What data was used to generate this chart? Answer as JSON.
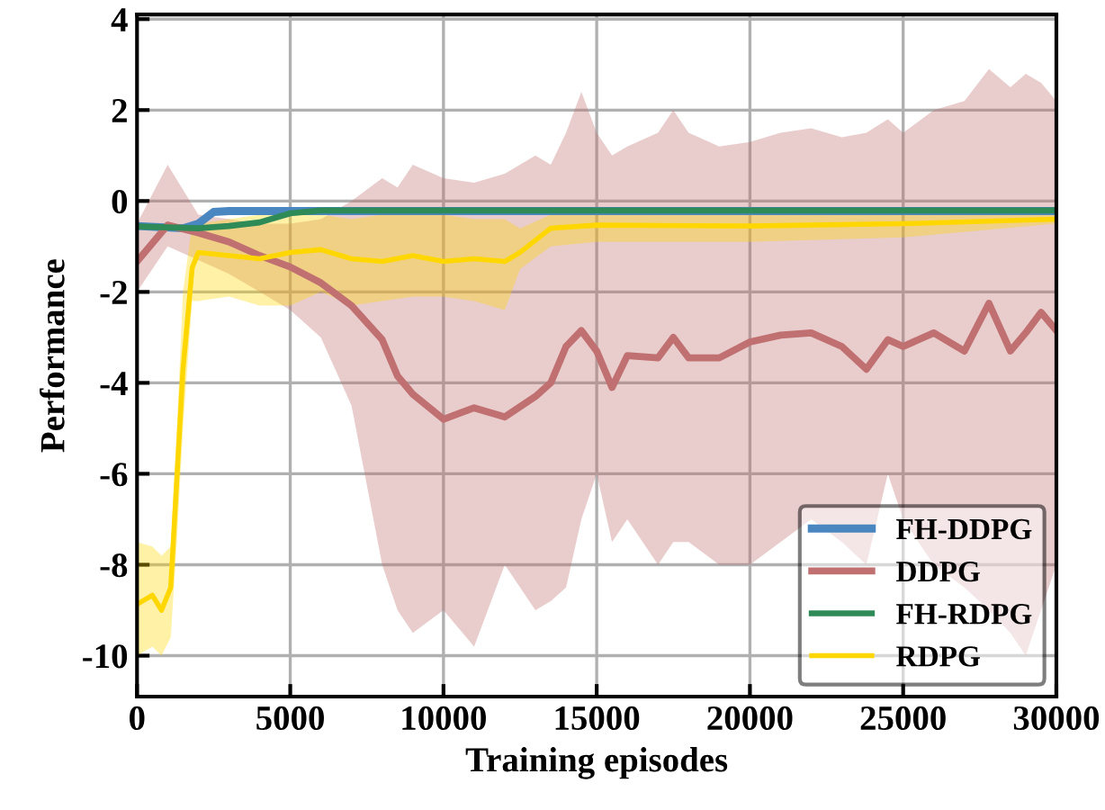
{
  "chart_data": {
    "type": "line",
    "xlabel": "Training episodes",
    "ylabel": "Performance",
    "xlim": [
      0,
      30000
    ],
    "xticks": [
      0,
      5000,
      10000,
      15000,
      20000,
      25000,
      30000
    ],
    "ylim": [
      -10.9,
      4.1
    ],
    "yticks": [
      -10,
      -8,
      -6,
      -4,
      -2,
      0,
      2,
      4
    ],
    "grid": true,
    "legend": "bottom right",
    "series": [
      {
        "name": "FH-DDPG",
        "color": "#4a86c0",
        "x": [
          0,
          1500,
          2000,
          2500,
          3000,
          30000
        ],
        "values": [
          -0.55,
          -0.6,
          -0.5,
          -0.24,
          -0.22,
          -0.22
        ]
      },
      {
        "name": "DDPG",
        "color": "#c07070",
        "x": [
          0,
          1000,
          2000,
          3000,
          4000,
          5000,
          6000,
          7000,
          8000,
          8500,
          9000,
          10000,
          11000,
          12000,
          13000,
          13500,
          14000,
          14500,
          15000,
          15500,
          16000,
          17000,
          17500,
          18000,
          19000,
          20000,
          21000,
          22000,
          23000,
          23800,
          24500,
          25000,
          26000,
          27000,
          27800,
          28500,
          29000,
          29500,
          30000
        ],
        "values": [
          -1.33,
          -0.53,
          -0.7,
          -0.9,
          -1.2,
          -1.45,
          -1.8,
          -2.3,
          -3.05,
          -3.85,
          -4.25,
          -4.8,
          -4.55,
          -4.75,
          -4.3,
          -4.0,
          -3.2,
          -2.85,
          -3.3,
          -4.1,
          -3.4,
          -3.45,
          -3.0,
          -3.45,
          -3.45,
          -3.1,
          -2.95,
          -2.9,
          -3.2,
          -3.7,
          -3.05,
          -3.2,
          -2.9,
          -3.3,
          -2.25,
          -3.3,
          -2.9,
          -2.45,
          -2.85
        ],
        "lower": [
          -2.0,
          -1.0,
          -1.3,
          -1.6,
          -2.0,
          -2.4,
          -3.0,
          -4.5,
          -8.0,
          -9.0,
          -9.5,
          -9.0,
          -9.8,
          -8.0,
          -9.0,
          -8.8,
          -8.5,
          -7.0,
          -6.0,
          -7.5,
          -7.0,
          -8.0,
          -7.5,
          -7.5,
          -8.0,
          -8.0,
          -7.5,
          -7.0,
          -7.5,
          -8.0,
          -6.0,
          -7.0,
          -8.0,
          -8.5,
          -9.0,
          -9.5,
          -10.0,
          -9.0,
          -8.0
        ],
        "upper": [
          -0.5,
          0.8,
          -0.3,
          -0.4,
          -0.5,
          -0.5,
          -0.4,
          0.0,
          0.5,
          0.3,
          0.8,
          0.5,
          0.4,
          0.6,
          1.0,
          0.8,
          1.5,
          2.4,
          1.5,
          1.0,
          1.2,
          1.5,
          2.0,
          1.5,
          1.2,
          1.3,
          1.5,
          1.6,
          1.4,
          1.5,
          1.8,
          1.5,
          2.0,
          2.2,
          2.9,
          2.5,
          2.8,
          2.6,
          2.2
        ]
      },
      {
        "name": "FH-RDPG",
        "color": "#2e8b57",
        "x": [
          0,
          2000,
          3000,
          4000,
          5000,
          6000,
          30000
        ],
        "values": [
          -0.56,
          -0.6,
          -0.55,
          -0.47,
          -0.27,
          -0.21,
          -0.21
        ]
      },
      {
        "name": "RDPG",
        "color": "#ffd700",
        "x": [
          0,
          500,
          800,
          1100,
          1300,
          1500,
          1800,
          2000,
          3000,
          4000,
          5000,
          6000,
          7000,
          8000,
          9000,
          10000,
          11000,
          12000,
          12500,
          13500,
          15000,
          20000,
          25000,
          30000
        ],
        "values": [
          -8.87,
          -8.67,
          -9.0,
          -8.5,
          -6.1,
          -3.7,
          -1.47,
          -1.13,
          -1.2,
          -1.27,
          -1.13,
          -1.07,
          -1.27,
          -1.33,
          -1.2,
          -1.33,
          -1.27,
          -1.33,
          -1.13,
          -0.6,
          -0.53,
          -0.55,
          -0.5,
          -0.4
        ],
        "lower": [
          -10.0,
          -9.8,
          -10.0,
          -9.6,
          -7.5,
          -5.0,
          -2.2,
          -2.2,
          -2.1,
          -2.3,
          -2.3,
          -2.0,
          -2.3,
          -2.2,
          -2.1,
          -2.1,
          -2.2,
          -2.4,
          -1.5,
          -1.0,
          -0.9,
          -0.9,
          -0.8,
          -0.5
        ],
        "upper": [
          -7.5,
          -7.6,
          -7.8,
          -7.6,
          -5.0,
          -2.0,
          -0.5,
          -0.5,
          -0.4,
          -0.3,
          -0.3,
          -0.3,
          -0.4,
          -0.3,
          -0.3,
          -0.3,
          -0.4,
          -0.4,
          -0.6,
          -0.3,
          -0.2,
          -0.2,
          -0.2,
          -0.3
        ]
      }
    ]
  }
}
